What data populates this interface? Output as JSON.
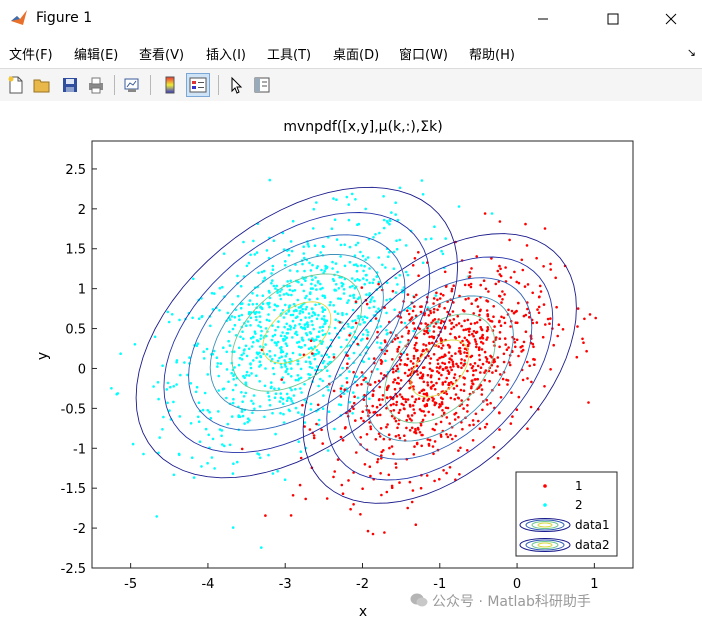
{
  "window": {
    "title": "Figure 1"
  },
  "menu": [
    "文件(F)",
    "编辑(E)",
    "查看(V)",
    "插入(I)",
    "工具(T)",
    "桌面(D)",
    "窗口(W)",
    "帮助(H)"
  ],
  "toolbar": {
    "buttons": [
      "new-figure",
      "open-file",
      "save",
      "print",
      "link-plot",
      "insert-colorbar",
      "insert-legend",
      "edit-plot",
      "property-inspector"
    ]
  },
  "chart_data": {
    "type": "scatter",
    "title": "mvnpdf([x,y],μ(k,:),Σk)",
    "xlabel": "x",
    "ylabel": "y",
    "xlim": [
      -5.5,
      1.5
    ],
    "ylim": [
      -2.5,
      2.85
    ],
    "xticks": [
      "-5",
      "-4",
      "-3",
      "-2",
      "-1",
      "0",
      "1"
    ],
    "yticks": [
      "-2.5",
      "-2",
      "-1.5",
      "-1",
      "-0.5",
      "0",
      "0.5",
      "1",
      "1.5",
      "2",
      "2.5"
    ],
    "grid": false,
    "legend_position": "bottom-right",
    "series": [
      {
        "name": "1",
        "kind": "points",
        "color": "#ff0000",
        "count": 1000,
        "mean": [
          -1.0,
          0.0
        ],
        "sd": [
          0.68,
          0.65
        ],
        "corr": 0.45
      },
      {
        "name": "2",
        "kind": "points",
        "color": "#00ffff",
        "count": 1000,
        "mean": [
          -2.85,
          0.45
        ],
        "sd": [
          0.8,
          0.7
        ],
        "corr": 0.45
      }
    ],
    "contours": [
      {
        "name": "data1",
        "center": [
          -1.0,
          0.0
        ],
        "levels": 6
      },
      {
        "name": "data2",
        "center": [
          -2.85,
          0.45
        ],
        "levels": 6
      }
    ],
    "contour_colors": [
      "#1a1a8c",
      "#2330a8",
      "#2f5bb8",
      "#3f8fb8",
      "#6fc58f",
      "#d8d840"
    ]
  },
  "watermark": "公众号 · Matlab科研助手"
}
